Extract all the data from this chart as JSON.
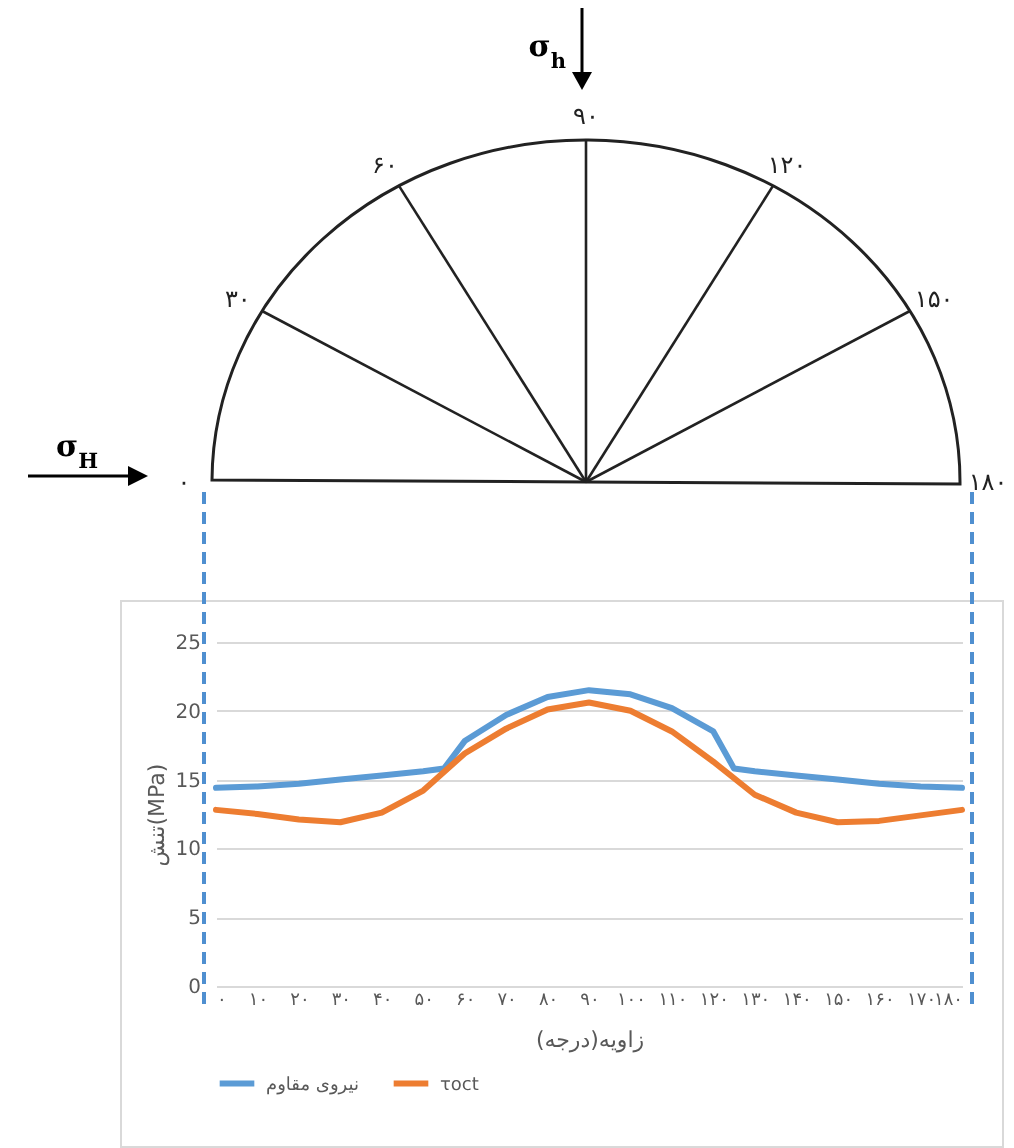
{
  "chart_data": {
    "type": "line",
    "xlabel": "زاویه(درجه)",
    "ylabel": "تنش(MPa)",
    "annotations": [
      "σ$_{h}$",
      "σ$_{H}$",
      "۰",
      "۳۰",
      "۶۰",
      "۹۰",
      "۱۲۰",
      "۱۵۰",
      "۱۸۰"
    ],
    "series": [
      {
        "name": "نیروی مقاوم",
        "color": "#5b9bd5",
        "x": [
          0,
          10,
          20,
          30,
          40,
          50,
          55,
          60,
          70,
          80,
          90,
          100,
          110,
          120,
          125,
          130,
          140,
          150,
          160,
          170,
          180
        ],
        "values": [
          14.4,
          14.5,
          14.7,
          15.0,
          15.3,
          15.6,
          15.8,
          17.8,
          19.7,
          21.0,
          21.5,
          21.2,
          20.2,
          18.5,
          15.8,
          15.6,
          15.3,
          15.0,
          14.7,
          14.5,
          14.4
        ]
      },
      {
        "name": "τoct",
        "color": "#ed7d31",
        "x": [
          0,
          10,
          20,
          30,
          40,
          50,
          60,
          70,
          80,
          90,
          100,
          110,
          120,
          130,
          140,
          150,
          160,
          170,
          180
        ],
        "values": [
          12.8,
          12.5,
          12.1,
          11.9,
          12.6,
          14.2,
          16.9,
          18.7,
          20.1,
          20.6,
          20.0,
          18.5,
          16.3,
          13.9,
          12.6,
          11.9,
          12.0,
          12.4,
          12.8
        ]
      }
    ],
    "xlim": [
      0,
      180
    ],
    "xticks": [
      {
        "value": 0,
        "label": "۰"
      },
      {
        "value": 10,
        "label": "۱۰"
      },
      {
        "value": 20,
        "label": "۲۰"
      },
      {
        "value": 30,
        "label": "۳۰"
      },
      {
        "value": 40,
        "label": "۴۰"
      },
      {
        "value": 50,
        "label": "۵۰"
      },
      {
        "value": 60,
        "label": "۶۰"
      },
      {
        "value": 70,
        "label": "۷۰"
      },
      {
        "value": 80,
        "label": "۸۰"
      },
      {
        "value": 90,
        "label": "۹۰"
      },
      {
        "value": 100,
        "label": "۱۰۰"
      },
      {
        "value": 110,
        "label": "۱۱۰"
      },
      {
        "value": 120,
        "label": "۱۲۰"
      },
      {
        "value": 130,
        "label": "۱۳۰"
      },
      {
        "value": 140,
        "label": "۱۴۰"
      },
      {
        "value": 150,
        "label": "۱۵۰"
      },
      {
        "value": 160,
        "label": "۱۶۰"
      },
      {
        "value": 170,
        "label": "۱۷۰"
      },
      {
        "value": 180,
        "label": "۱۸۰"
      }
    ],
    "ylim": [
      0,
      25
    ],
    "yticks": [
      0,
      5,
      10,
      15,
      20,
      25
    ],
    "grid": "y",
    "legend": "bottom",
    "marker": "none",
    "line_style": "solid"
  }
}
